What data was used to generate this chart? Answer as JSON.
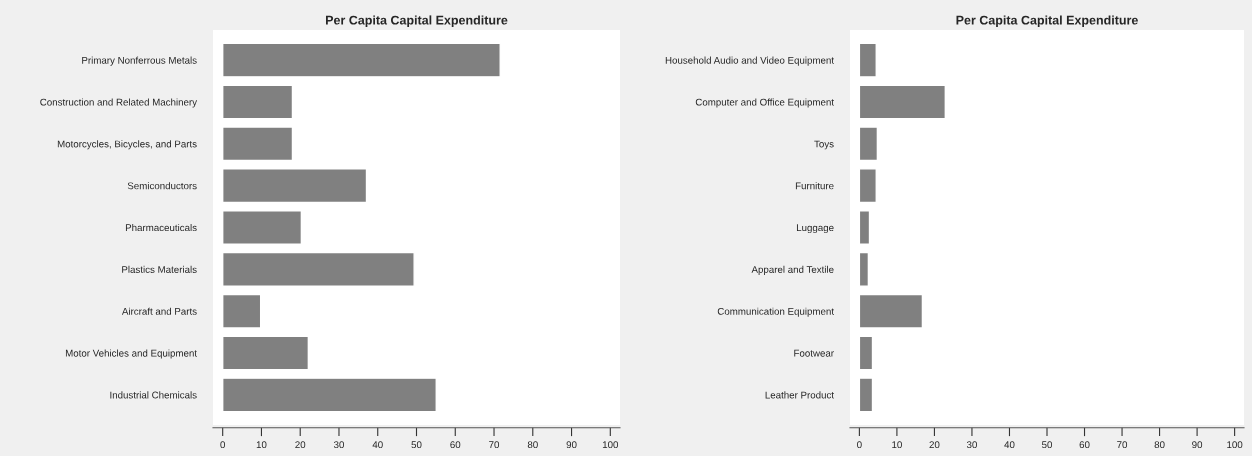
{
  "chart_data": [
    {
      "type": "bar",
      "orientation": "horizontal",
      "title": "Per Capita Capital Expenditure",
      "categories": [
        "Primary Nonferrous Metals",
        "Construction and Related Machinery",
        "Motorcycles, Bicycles, and Parts",
        "Semiconductors",
        "Pharmaceuticals",
        "Plastics Materials",
        "Aircraft and Parts",
        "Motor Vehicles and Equipment",
        "Industrial Chemicals"
      ],
      "values": [
        71.6,
        18.0,
        18.0,
        37.1,
        20.3,
        49.4,
        9.8,
        22.1,
        55.1
      ],
      "color": "#808080",
      "xlim": [
        -2.5,
        102.5
      ],
      "xticks": [
        0,
        10,
        20,
        30,
        40,
        50,
        60,
        70,
        80,
        90,
        100
      ],
      "grid": false
    },
    {
      "type": "bar",
      "orientation": "horizontal",
      "title": "Per Capita Capital Expenditure",
      "categories": [
        "Household Audio and Video Equipment",
        "Computer and Office Equipment",
        "Toys",
        "Furniture",
        "Luggage",
        "Apparel and Textile",
        "Communication Equipment",
        "Footwear",
        "Leather Product"
      ],
      "values": [
        4.5,
        22.9,
        4.8,
        4.5,
        2.7,
        2.4,
        16.8,
        3.5,
        3.5
      ],
      "color": "#808080",
      "xlim": [
        -2.5,
        102.5
      ],
      "xticks": [
        0,
        10,
        20,
        30,
        40,
        50,
        60,
        70,
        80,
        90,
        100
      ],
      "grid": false
    }
  ]
}
